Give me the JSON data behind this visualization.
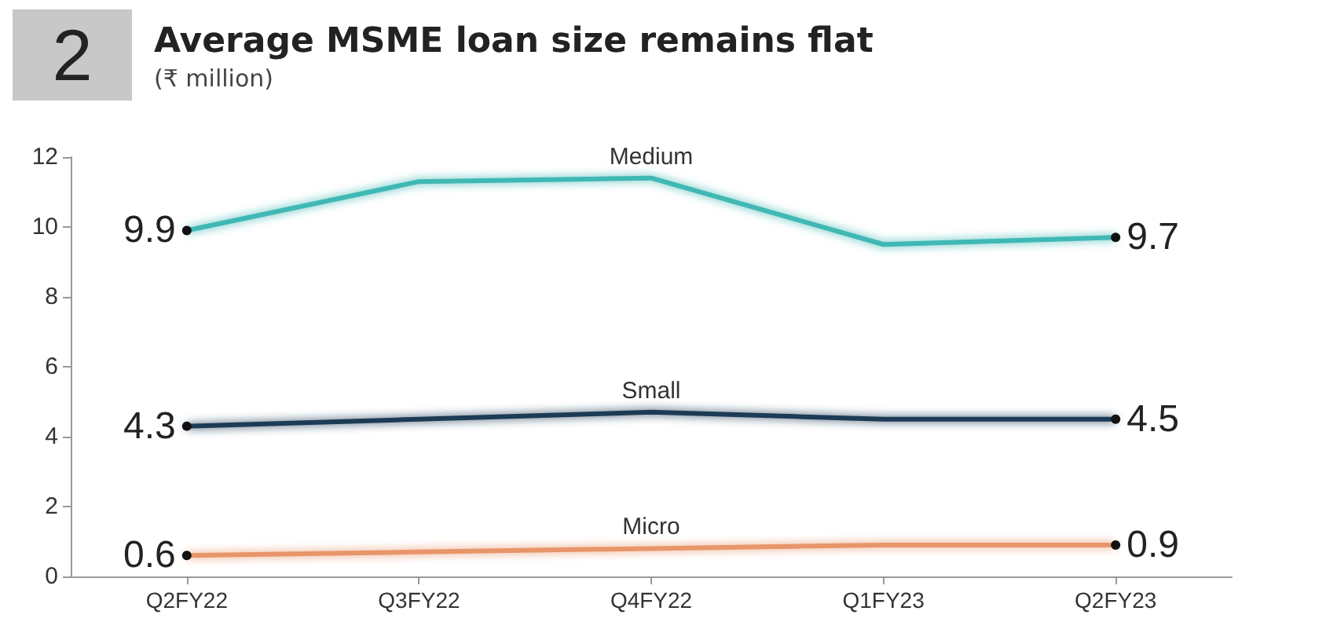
{
  "chart_data": {
    "type": "line",
    "title": "Average MSME loan size remains flat",
    "subtitle": "(₹ million)",
    "annotations": [
      "2"
    ],
    "categories": [
      "Q2FY22",
      "Q3FY22",
      "Q4FY22",
      "Q1FY23",
      "Q2FY23"
    ],
    "series": [
      {
        "name": "Medium",
        "color": "#3fb8b4",
        "values": [
          9.9,
          11.3,
          11.4,
          9.5,
          9.7
        ],
        "value_labels": [
          "9.9",
          null,
          null,
          null,
          "9.7"
        ]
      },
      {
        "name": "Small",
        "color": "#1f3b54",
        "values": [
          4.3,
          4.5,
          4.7,
          4.5,
          4.5
        ],
        "value_labels": [
          "4.3",
          null,
          null,
          null,
          "4.5"
        ]
      },
      {
        "name": "Micro",
        "color": "#e8956a",
        "values": [
          0.6,
          0.7,
          0.8,
          0.9,
          0.9
        ],
        "value_labels": [
          "0.6",
          null,
          null,
          null,
          "0.9"
        ]
      }
    ],
    "ylim": [
      0,
      12
    ],
    "yticks": [
      0,
      2,
      4,
      6,
      8,
      10,
      12
    ],
    "grid": false,
    "legend": false,
    "marker": "none",
    "line_style": "solid"
  }
}
